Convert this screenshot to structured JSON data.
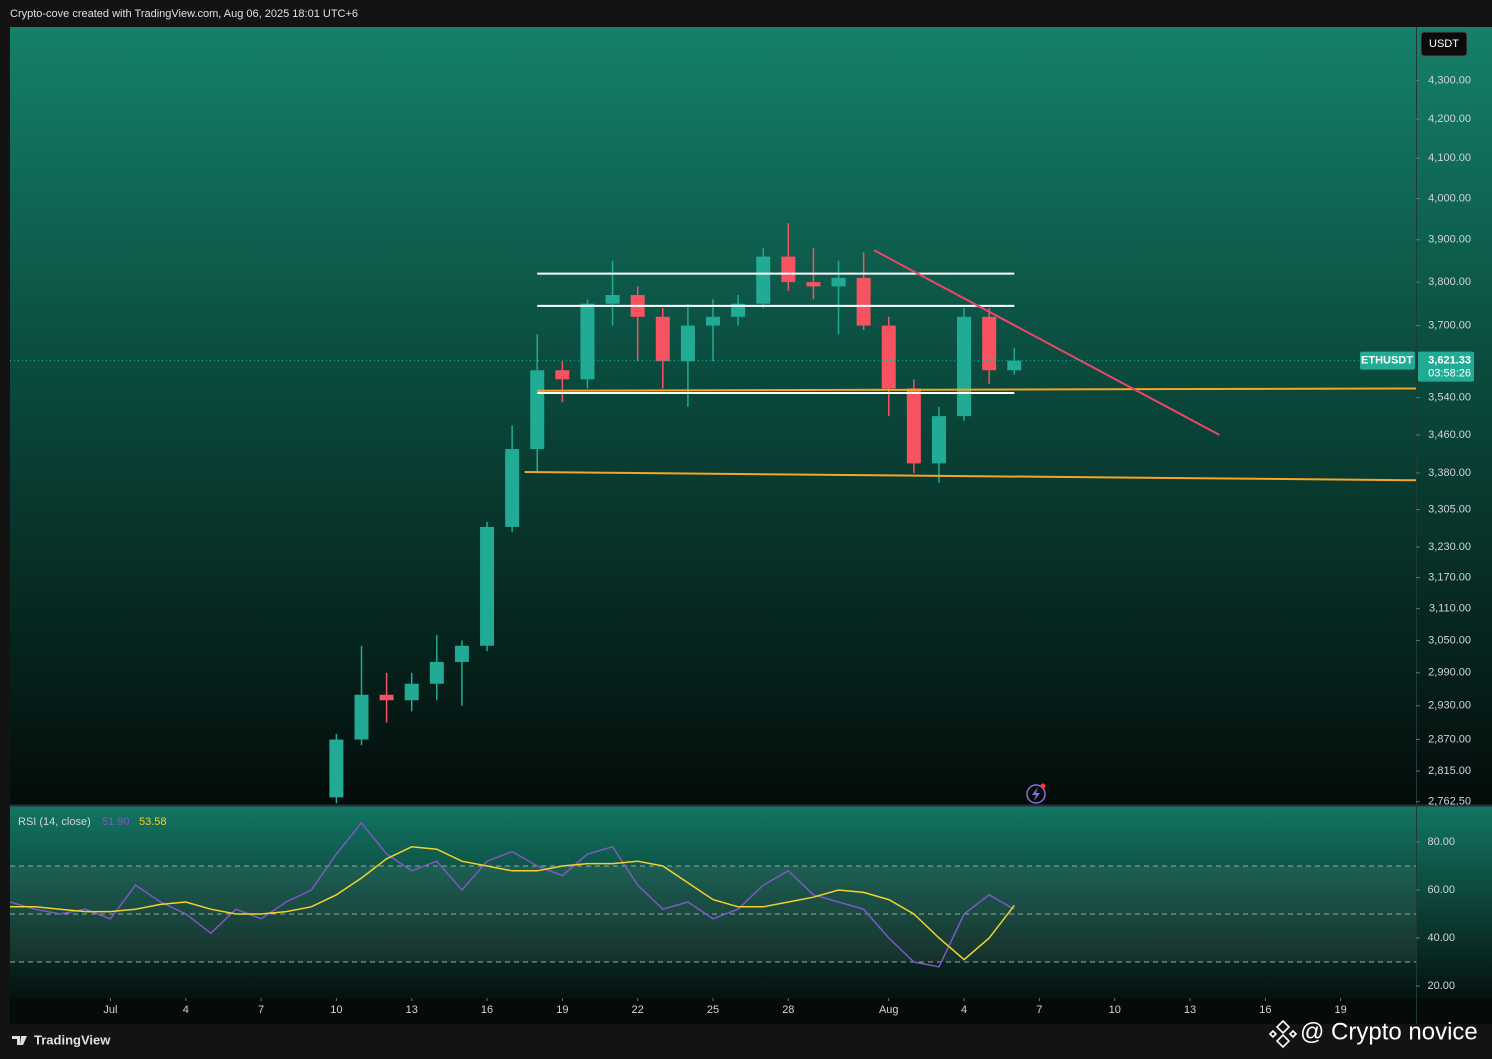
{
  "header": {
    "caption": "Crypto-cove created with TradingView.com, Aug 06, 2025 18:01 UTC+6"
  },
  "chart_data": [
    {
      "type": "candlestick",
      "symbol": "ETHUSDT",
      "currency": "USDT",
      "log_scale": true,
      "up_color": "#22ab94",
      "down_color": "#f7525f",
      "x": [
        "2025-07-10",
        "2025-07-11",
        "2025-07-12",
        "2025-07-13",
        "2025-07-14",
        "2025-07-15",
        "2025-07-16",
        "2025-07-17",
        "2025-07-18",
        "2025-07-19",
        "2025-07-20",
        "2025-07-21",
        "2025-07-22",
        "2025-07-23",
        "2025-07-24",
        "2025-07-25",
        "2025-07-26",
        "2025-07-27",
        "2025-07-28",
        "2025-07-29",
        "2025-07-30",
        "2025-07-31",
        "2025-08-01",
        "2025-08-02",
        "2025-08-03",
        "2025-08-04",
        "2025-08-05",
        "2025-08-06"
      ],
      "open": [
        2770,
        2870,
        2950,
        2940,
        2970,
        3010,
        3040,
        3270,
        3430,
        3600,
        3580,
        3750,
        3770,
        3720,
        3620,
        3700,
        3720,
        3750,
        3860,
        3800,
        3790,
        3810,
        3700,
        3560,
        3400,
        3500,
        3720,
        3600
      ],
      "high": [
        2880,
        3040,
        2990,
        2990,
        3060,
        3050,
        3280,
        3480,
        3680,
        3620,
        3760,
        3850,
        3790,
        3740,
        3750,
        3760,
        3770,
        3880,
        3940,
        3880,
        3850,
        3870,
        3720,
        3580,
        3520,
        3740,
        3740,
        3650
      ],
      "low": [
        2760,
        2860,
        2900,
        2920,
        2940,
        2930,
        3030,
        3260,
        3380,
        3530,
        3560,
        3700,
        3620,
        3560,
        3520,
        3620,
        3700,
        3740,
        3780,
        3760,
        3680,
        3690,
        3500,
        3380,
        3360,
        3490,
        3570,
        3590
      ],
      "close": [
        2870,
        2950,
        2940,
        2970,
        3010,
        3040,
        3270,
        3430,
        3600,
        3580,
        3750,
        3770,
        3720,
        3620,
        3700,
        3720,
        3750,
        3860,
        3800,
        3790,
        3810,
        3700,
        3560,
        3400,
        3500,
        3720,
        3600,
        3621.33
      ],
      "xlim": [
        "2025-06-27",
        "2025-08-22"
      ],
      "xticks": [
        {
          "value": "2025-07-01",
          "label": "Jul"
        },
        {
          "value": "2025-07-04",
          "label": "4"
        },
        {
          "value": "2025-07-07",
          "label": "7"
        },
        {
          "value": "2025-07-10",
          "label": "10"
        },
        {
          "value": "2025-07-13",
          "label": "13"
        },
        {
          "value": "2025-07-16",
          "label": "16"
        },
        {
          "value": "2025-07-19",
          "label": "19"
        },
        {
          "value": "2025-07-22",
          "label": "22"
        },
        {
          "value": "2025-07-25",
          "label": "25"
        },
        {
          "value": "2025-07-28",
          "label": "28"
        },
        {
          "value": "2025-08-01",
          "label": "Aug"
        },
        {
          "value": "2025-08-04",
          "label": "4"
        },
        {
          "value": "2025-08-07",
          "label": "7"
        },
        {
          "value": "2025-08-10",
          "label": "10"
        },
        {
          "value": "2025-08-13",
          "label": "13"
        },
        {
          "value": "2025-08-16",
          "label": "16"
        },
        {
          "value": "2025-08-19",
          "label": "19"
        }
      ],
      "ylim": [
        2757,
        4444
      ],
      "yticks": [
        {
          "value": 4300,
          "label": "4,300.00"
        },
        {
          "value": 4200,
          "label": "4,200.00"
        },
        {
          "value": 4100,
          "label": "4,100.00"
        },
        {
          "value": 4000,
          "label": "4,000.00"
        },
        {
          "value": 3900,
          "label": "3,900.00"
        },
        {
          "value": 3800,
          "label": "3,800.00"
        },
        {
          "value": 3700,
          "label": "3,700.00"
        },
        {
          "value": 3540,
          "label": "3,540.00"
        },
        {
          "value": 3460,
          "label": "3,460.00"
        },
        {
          "value": 3380,
          "label": "3,380.00"
        },
        {
          "value": 3305,
          "label": "3,305.00"
        },
        {
          "value": 3230,
          "label": "3,230.00"
        },
        {
          "value": 3170,
          "label": "3,170.00"
        },
        {
          "value": 3110,
          "label": "3,110.00"
        },
        {
          "value": 3050,
          "label": "3,050.00"
        },
        {
          "value": 2990,
          "label": "2,990.00"
        },
        {
          "value": 2930,
          "label": "2,930.00"
        },
        {
          "value": 2870,
          "label": "2,870.00"
        },
        {
          "value": 2815,
          "label": "2,815.00"
        },
        {
          "value": 2762.5,
          "label": "2,762.50"
        }
      ],
      "last_price": {
        "value": 3621.33,
        "label": "3,621.33"
      },
      "countdown": "03:58:26",
      "lines": [
        {
          "color": "#ffffff",
          "x": [
            "2025-07-18",
            "2025-08-06"
          ],
          "y": [
            3820,
            3820
          ]
        },
        {
          "color": "#ffffff",
          "x": [
            "2025-07-18",
            "2025-08-06"
          ],
          "y": [
            3745,
            3745
          ]
        },
        {
          "color": "#ffffff",
          "x": [
            "2025-07-18",
            "2025-08-06"
          ],
          "y": [
            3550,
            3550
          ]
        },
        {
          "color": "#f5a623",
          "x": [
            "2025-07-18",
            "2025-08-22"
          ],
          "y": [
            3555,
            3560
          ]
        },
        {
          "color": "#f5a623",
          "x": [
            "2025-07-17T12:00",
            "2025-08-22"
          ],
          "y": [
            3382,
            3365
          ]
        },
        {
          "color": "#e8476a",
          "x": [
            "2025-07-31T10:00",
            "2025-08-14T04:00"
          ],
          "y": [
            3875,
            3460
          ]
        }
      ]
    },
    {
      "type": "line",
      "title": "RSI (14, close)",
      "x": [
        "2025-06-27",
        "2025-06-28",
        "2025-06-29",
        "2025-06-30",
        "2025-07-01",
        "2025-07-02",
        "2025-07-03",
        "2025-07-04",
        "2025-07-05",
        "2025-07-06",
        "2025-07-07",
        "2025-07-08",
        "2025-07-09",
        "2025-07-10",
        "2025-07-11",
        "2025-07-12",
        "2025-07-13",
        "2025-07-14",
        "2025-07-15",
        "2025-07-16",
        "2025-07-17",
        "2025-07-18",
        "2025-07-19",
        "2025-07-20",
        "2025-07-21",
        "2025-07-22",
        "2025-07-23",
        "2025-07-24",
        "2025-07-25",
        "2025-07-26",
        "2025-07-27",
        "2025-07-28",
        "2025-07-29",
        "2025-07-30",
        "2025-07-31",
        "2025-08-01",
        "2025-08-02",
        "2025-08-03",
        "2025-08-04",
        "2025-08-05",
        "2025-08-06"
      ],
      "series": [
        {
          "color": "#7e57c2",
          "current_label": "51.90",
          "values": [
            55,
            52,
            50,
            52,
            48,
            62,
            55,
            50,
            42,
            52,
            48,
            55,
            60,
            75,
            88,
            75,
            68,
            72,
            60,
            72,
            76,
            70,
            66,
            75,
            78,
            62,
            52,
            55,
            48,
            52,
            62,
            68,
            58,
            55,
            52,
            40,
            30,
            28,
            50,
            58,
            51.9
          ]
        },
        {
          "color": "#f2d12e",
          "current_label": "53.58",
          "values": [
            53,
            53,
            52,
            51,
            51,
            52,
            54,
            55,
            52,
            50,
            50,
            51,
            53,
            58,
            65,
            73,
            78,
            77,
            72,
            70,
            68,
            68,
            70,
            71,
            71,
            72,
            70,
            63,
            56,
            53,
            53,
            55,
            57,
            60,
            59,
            56,
            50,
            40,
            31,
            40,
            53.58
          ]
        }
      ],
      "ylim": [
        15,
        95
      ],
      "yticks": [
        {
          "value": 20,
          "label": "20.00"
        },
        {
          "value": 40,
          "label": "40.00"
        },
        {
          "value": 60,
          "label": "60.00"
        },
        {
          "value": 80,
          "label": "80.00"
        }
      ],
      "bands": [
        70,
        50,
        30
      ]
    }
  ],
  "footer": {
    "logo": "TradingView",
    "watermark": "@ Crypto novice"
  }
}
